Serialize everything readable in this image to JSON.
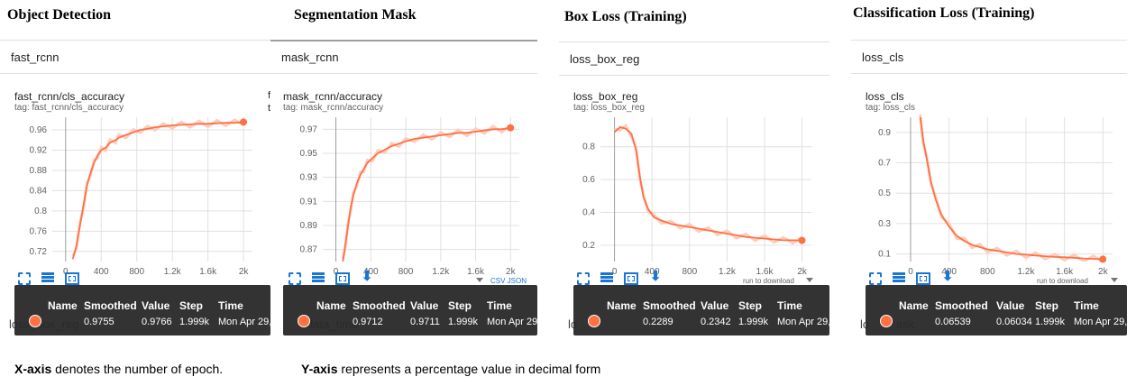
{
  "chart_data": [
    {
      "type": "line",
      "title": "Object Detection",
      "run": "fast_rcnn",
      "card_title": "fast_rcnn/cls_accuracy",
      "tag": "tag: fast_rcnn/cls_accuracy",
      "xlim": [
        -150,
        2100
      ],
      "ylim": [
        0.7,
        0.985
      ],
      "xticks": [
        0,
        400,
        800,
        1200,
        1600,
        2000
      ],
      "xtick_labels": [
        "0",
        "400",
        "800",
        "1.2k",
        "1.6k",
        "2k"
      ],
      "yticks": [
        0.72,
        0.76,
        0.8,
        0.84,
        0.88,
        0.92,
        0.96
      ],
      "ytick_labels": [
        "0.72",
        "0.76",
        "0.8",
        "0.84",
        "0.88",
        "0.92",
        "0.96"
      ],
      "series": [
        {
          "x": [
            80,
            120,
            160,
            200,
            240,
            280,
            320,
            360,
            400,
            450,
            500,
            560,
            600,
            680,
            760,
            840,
            920,
            1000,
            1100,
            1200,
            1300,
            1400,
            1500,
            1600,
            1700,
            1800,
            1900,
            1999
          ],
          "y": [
            0.705,
            0.73,
            0.77,
            0.81,
            0.85,
            0.875,
            0.895,
            0.91,
            0.92,
            0.925,
            0.935,
            0.94,
            0.945,
            0.95,
            0.955,
            0.96,
            0.962,
            0.965,
            0.967,
            0.969,
            0.97,
            0.971,
            0.972,
            0.972,
            0.973,
            0.974,
            0.974,
            0.9755
          ]
        }
      ],
      "tooltip": {
        "headers": [
          "Name",
          "Smoothed",
          "Value",
          "Step",
          "Time"
        ],
        "smoothed": "0.9755",
        "value": "0.9766",
        "step": "1.999k",
        "time": "Mon Apr 29,"
      },
      "underlay": "loss_box_reg"
    },
    {
      "type": "line",
      "title": "Segmentation Mask",
      "run": "mask_rcnn",
      "card_title": "mask_rcnn/accuracy",
      "tag": "tag: mask_rcnn/accuracy",
      "xlim": [
        -150,
        2100
      ],
      "ylim": [
        0.86,
        0.98
      ],
      "xticks": [
        0,
        400,
        800,
        1200,
        1600,
        2000
      ],
      "xtick_labels": [
        "0",
        "400",
        "800",
        "1.2k",
        "1.6k",
        "2k"
      ],
      "yticks": [
        0.87,
        0.89,
        0.91,
        0.93,
        0.95,
        0.97
      ],
      "ytick_labels": [
        "0.87",
        "0.89",
        "0.91",
        "0.93",
        "0.95",
        "0.97"
      ],
      "series": [
        {
          "x": [
            80,
            110,
            140,
            170,
            200,
            240,
            280,
            320,
            360,
            420,
            480,
            560,
            640,
            720,
            800,
            900,
            1000,
            1100,
            1200,
            1300,
            1400,
            1500,
            1600,
            1700,
            1800,
            1900,
            1999
          ],
          "y": [
            0.86,
            0.875,
            0.89,
            0.905,
            0.915,
            0.925,
            0.932,
            0.937,
            0.942,
            0.946,
            0.95,
            0.953,
            0.956,
            0.958,
            0.96,
            0.962,
            0.963,
            0.964,
            0.965,
            0.966,
            0.967,
            0.967,
            0.968,
            0.969,
            0.97,
            0.97,
            0.9712
          ]
        }
      ],
      "tooltip": {
        "headers": [
          "Name",
          "Smoothed",
          "Value",
          "Step",
          "Time"
        ],
        "smoothed": "0.9712",
        "value": "0.9711",
        "step": "1.999k",
        "time": "Mon Apr 29,"
      },
      "underlay": "data_time",
      "extra": {
        "csv_json": "CSV JSON"
      }
    },
    {
      "type": "line",
      "title": "Box Loss (Training)",
      "run": "loss_box_reg",
      "card_title": "loss_box_reg",
      "tag": "tag: loss_box_reg",
      "xlim": [
        -150,
        2100
      ],
      "ylim": [
        0.1,
        0.98
      ],
      "xticks": [
        0,
        400,
        800,
        1200,
        1600,
        2000
      ],
      "xtick_labels": [
        "0",
        "400",
        "800",
        "1.2k",
        "1.6k",
        "2k"
      ],
      "yticks": [
        0.2,
        0.4,
        0.6,
        0.8
      ],
      "ytick_labels": [
        "0.2",
        "0.4",
        "0.6",
        "0.8"
      ],
      "series": [
        {
          "x": [
            0,
            60,
            120,
            180,
            230,
            270,
            310,
            360,
            420,
            500,
            600,
            700,
            800,
            900,
            1000,
            1100,
            1200,
            1300,
            1400,
            1500,
            1600,
            1700,
            1800,
            1900,
            1999
          ],
          "y": [
            0.89,
            0.92,
            0.91,
            0.88,
            0.78,
            0.62,
            0.49,
            0.42,
            0.37,
            0.35,
            0.33,
            0.32,
            0.31,
            0.3,
            0.29,
            0.28,
            0.27,
            0.26,
            0.25,
            0.245,
            0.24,
            0.235,
            0.23,
            0.23,
            0.2289
          ]
        }
      ],
      "tooltip": {
        "headers": [
          "Name",
          "Smoothed",
          "Value",
          "Step",
          "Time"
        ],
        "smoothed": "0.2289",
        "value": "0.2342",
        "step": "1.999k",
        "time": "Mon Apr 29,"
      },
      "underlay": "lo",
      "extra": {
        "download": "run to download"
      }
    },
    {
      "type": "line",
      "title": "Classification Loss (Training)",
      "run": "loss_cls",
      "card_title": "loss_cls",
      "tag": "tag: loss_cls",
      "xlim": [
        -150,
        2100
      ],
      "ylim": [
        0.05,
        1.0
      ],
      "xticks": [
        0,
        400,
        800,
        1200,
        1600,
        2000
      ],
      "xtick_labels": [
        "0",
        "400",
        "800",
        "1.2k",
        "1.6k",
        "2k"
      ],
      "yticks": [
        0.1,
        0.3,
        0.5,
        0.7,
        0.9
      ],
      "ytick_labels": [
        "0.1",
        "0.3",
        "0.5",
        "0.7",
        "0.9"
      ],
      "series": [
        {
          "x": [
            100,
            130,
            170,
            210,
            260,
            320,
            400,
            480,
            560,
            640,
            720,
            800,
            900,
            1000,
            1100,
            1200,
            1300,
            1400,
            1500,
            1600,
            1700,
            1800,
            1900,
            1999
          ],
          "y": [
            1.0,
            0.85,
            0.72,
            0.58,
            0.46,
            0.36,
            0.28,
            0.22,
            0.185,
            0.16,
            0.145,
            0.13,
            0.12,
            0.11,
            0.1,
            0.095,
            0.09,
            0.085,
            0.08,
            0.078,
            0.075,
            0.07,
            0.068,
            0.06539
          ]
        }
      ],
      "tooltip": {
        "headers": [
          "Name",
          "Smoothed",
          "Value",
          "Step",
          "Time"
        ],
        "smoothed": "0.06539",
        "value": "0.06034",
        "step": "1.999k",
        "time": "Mon Apr 29,"
      },
      "underlay": "lo",
      "underlay_tail": "ask",
      "extra": {
        "download": "run to download"
      }
    }
  ],
  "captions": {
    "x_bold": "X-axis",
    "x_text": " denotes the number of epoch.",
    "y_bold": "Y-axis",
    "y_text": " represents a percentage value in decimal form"
  },
  "colors": {
    "line": "#ff7043",
    "raw": "#ffccbc",
    "grid": "#e0e0e0",
    "axis": "#9e9e9e"
  }
}
